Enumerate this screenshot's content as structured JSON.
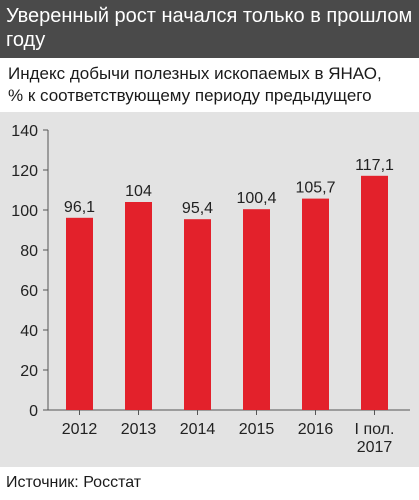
{
  "header": {
    "title": "Уверенный рост начался только в прошлом году"
  },
  "subtitle": {
    "line1": "Индекс добычи полезных ископаемых в ЯНАО,",
    "line2": "% к соответствующему периоду предыдущего года"
  },
  "source": {
    "text": "Источник: Росстат"
  },
  "colors": {
    "bar": "#e3212b",
    "header_bg": "#4a4a4a",
    "panel_bg": "#e3e3e3"
  },
  "chart_data": {
    "type": "bar",
    "categories": [
      [
        "2012"
      ],
      [
        "2013"
      ],
      [
        "2014"
      ],
      [
        "2015"
      ],
      [
        "2016"
      ],
      [
        "I пол.",
        "2017"
      ]
    ],
    "values": [
      96.1,
      104,
      95.4,
      100.4,
      105.7,
      117.1
    ],
    "value_labels": [
      "96,1",
      "104",
      "95,4",
      "100,4",
      "105,7",
      "117,1"
    ],
    "yticks": [
      0,
      20,
      40,
      60,
      80,
      100,
      120,
      140
    ],
    "ylim": [
      0,
      140
    ],
    "grid": false
  }
}
